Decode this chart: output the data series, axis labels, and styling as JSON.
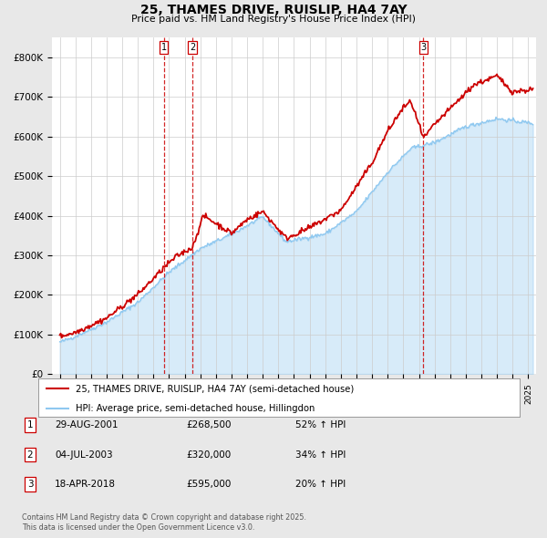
{
  "title": "25, THAMES DRIVE, RUISLIP, HA4 7AY",
  "subtitle": "Price paid vs. HM Land Registry's House Price Index (HPI)",
  "legend_line1": "25, THAMES DRIVE, RUISLIP, HA4 7AY (semi-detached house)",
  "legend_line2": "HPI: Average price, semi-detached house, Hillingdon",
  "footer1": "Contains HM Land Registry data © Crown copyright and database right 2025.",
  "footer2": "This data is licensed under the Open Government Licence v3.0.",
  "transactions": [
    {
      "label": "1",
      "date": "29-AUG-2001",
      "price": "£268,500",
      "change": "52% ↑ HPI",
      "year": 2001.66
    },
    {
      "label": "2",
      "date": "04-JUL-2003",
      "price": "£320,000",
      "change": "34% ↑ HPI",
      "year": 2003.5
    },
    {
      "label": "3",
      "date": "18-APR-2018",
      "price": "£595,000",
      "change": "20% ↑ HPI",
      "year": 2018.29
    }
  ],
  "hpi_color": "#8ec8f0",
  "price_color": "#cc0000",
  "vline_color": "#cc0000",
  "background_color": "#e8e8e8",
  "plot_bg_color": "#ffffff",
  "ylim": [
    0,
    850000
  ],
  "xlim_start": 1994.5,
  "xlim_end": 2025.5
}
